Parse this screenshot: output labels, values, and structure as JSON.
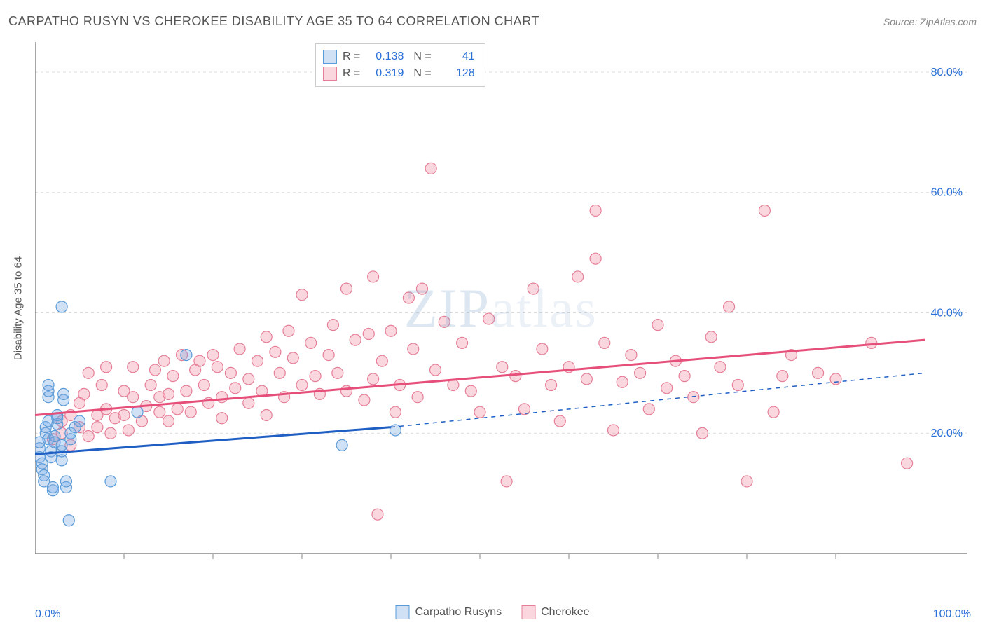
{
  "header": {
    "title": "CARPATHO RUSYN VS CHEROKEE DISABILITY AGE 35 TO 64 CORRELATION CHART",
    "source": "Source: ZipAtlas.com"
  },
  "watermark": {
    "zip": "ZIP",
    "atlas": "atlas"
  },
  "chart": {
    "type": "scatter",
    "y_label": "Disability Age 35 to 64",
    "xlim": [
      0,
      100
    ],
    "ylim": [
      0,
      85
    ],
    "y_ticks": [
      20,
      40,
      60,
      80
    ],
    "y_tick_labels": [
      "20.0%",
      "40.0%",
      "60.0%",
      "80.0%"
    ],
    "x_ticks": [
      10,
      20,
      30,
      40,
      50,
      60,
      70,
      80,
      90
    ],
    "x_label_min": "0.0%",
    "x_label_max": "100.0%",
    "grid_color": "#dcdcdc",
    "axis_color": "#888888",
    "tick_label_color": "#2a6fd6",
    "background_color": "#ffffff",
    "marker_radius": 8,
    "marker_stroke_width": 1.2,
    "series": {
      "carpatho": {
        "label": "Carpatho Rusyns",
        "fill": "rgba(120,170,230,0.35)",
        "stroke": "#5a9bd8",
        "trend_color": "#1f5fc4",
        "trend_solid_x": [
          0,
          40
        ],
        "trend_solid_y": [
          16.5,
          21
        ],
        "trend_dash_x": [
          40,
          100
        ],
        "trend_dash_y": [
          21,
          30
        ],
        "points": [
          [
            0.5,
            17.5
          ],
          [
            0.5,
            18.5
          ],
          [
            0.5,
            16
          ],
          [
            0.8,
            15
          ],
          [
            0.8,
            14
          ],
          [
            1,
            13
          ],
          [
            1,
            12
          ],
          [
            1.2,
            20
          ],
          [
            1.2,
            21
          ],
          [
            1.5,
            22
          ],
          [
            1.5,
            19
          ],
          [
            1.5,
            26
          ],
          [
            1.5,
            27
          ],
          [
            1.5,
            28
          ],
          [
            1.8,
            17
          ],
          [
            1.8,
            16
          ],
          [
            2,
            10.5
          ],
          [
            2,
            11
          ],
          [
            2.2,
            18.5
          ],
          [
            2.2,
            19.5
          ],
          [
            2.5,
            21.5
          ],
          [
            2.5,
            22.5
          ],
          [
            2.5,
            23
          ],
          [
            3,
            15.5
          ],
          [
            3,
            17
          ],
          [
            3,
            18
          ],
          [
            3,
            41
          ],
          [
            3.2,
            25.5
          ],
          [
            3.2,
            26.5
          ],
          [
            3.5,
            11
          ],
          [
            3.5,
            12
          ],
          [
            3.8,
            5.5
          ],
          [
            4,
            19
          ],
          [
            4,
            20
          ],
          [
            4.5,
            21
          ],
          [
            5,
            22
          ],
          [
            8.5,
            12
          ],
          [
            11.5,
            23.5
          ],
          [
            17,
            33
          ],
          [
            34.5,
            18
          ],
          [
            40.5,
            20.5
          ]
        ]
      },
      "cherokee": {
        "label": "Cherokee",
        "fill": "rgba(240,140,160,0.35)",
        "stroke": "#e57f98",
        "trend_color": "#e64f7a",
        "trend_solid_x": [
          0,
          100
        ],
        "trend_solid_y": [
          23,
          35.5
        ],
        "points": [
          [
            2,
            19
          ],
          [
            3,
            20
          ],
          [
            3,
            22
          ],
          [
            4,
            23
          ],
          [
            4,
            18
          ],
          [
            5,
            25
          ],
          [
            5,
            21
          ],
          [
            5.5,
            26.5
          ],
          [
            6,
            30
          ],
          [
            6,
            19.5
          ],
          [
            7,
            21
          ],
          [
            7,
            23
          ],
          [
            7.5,
            28
          ],
          [
            8,
            31
          ],
          [
            8,
            24
          ],
          [
            8.5,
            20
          ],
          [
            9,
            22.5
          ],
          [
            10,
            23
          ],
          [
            10,
            27
          ],
          [
            10.5,
            20.5
          ],
          [
            11,
            31
          ],
          [
            11,
            26
          ],
          [
            12,
            22
          ],
          [
            12.5,
            24.5
          ],
          [
            13,
            28
          ],
          [
            13.5,
            30.5
          ],
          [
            14,
            26
          ],
          [
            14,
            23.5
          ],
          [
            14.5,
            32
          ],
          [
            15,
            26.5
          ],
          [
            15,
            22
          ],
          [
            15.5,
            29.5
          ],
          [
            16,
            24
          ],
          [
            16.5,
            33
          ],
          [
            17,
            27
          ],
          [
            17.5,
            23.5
          ],
          [
            18,
            30.5
          ],
          [
            18.5,
            32
          ],
          [
            19,
            28
          ],
          [
            19.5,
            25
          ],
          [
            20,
            33
          ],
          [
            20.5,
            31
          ],
          [
            21,
            26
          ],
          [
            21,
            22.5
          ],
          [
            22,
            30
          ],
          [
            22.5,
            27.5
          ],
          [
            23,
            34
          ],
          [
            24,
            29
          ],
          [
            24,
            25
          ],
          [
            25,
            32
          ],
          [
            25.5,
            27
          ],
          [
            26,
            36
          ],
          [
            26,
            23
          ],
          [
            27,
            33.5
          ],
          [
            27.5,
            30
          ],
          [
            28,
            26
          ],
          [
            28.5,
            37
          ],
          [
            29,
            32.5
          ],
          [
            30,
            28
          ],
          [
            30,
            43
          ],
          [
            31,
            35
          ],
          [
            31.5,
            29.5
          ],
          [
            32,
            26.5
          ],
          [
            33,
            33
          ],
          [
            33.5,
            38
          ],
          [
            34,
            30
          ],
          [
            35,
            27
          ],
          [
            35,
            44
          ],
          [
            36,
            35.5
          ],
          [
            37,
            25.5
          ],
          [
            37.5,
            36.5
          ],
          [
            38,
            29
          ],
          [
            38,
            46
          ],
          [
            38.5,
            6.5
          ],
          [
            39,
            32
          ],
          [
            40,
            37
          ],
          [
            40.5,
            23.5
          ],
          [
            41,
            28
          ],
          [
            42,
            42.5
          ],
          [
            42.5,
            34
          ],
          [
            43,
            26
          ],
          [
            43.5,
            44
          ],
          [
            44.5,
            64
          ],
          [
            45,
            30.5
          ],
          [
            46,
            38.5
          ],
          [
            47,
            28
          ],
          [
            48,
            35
          ],
          [
            49,
            27
          ],
          [
            50,
            23.5
          ],
          [
            51,
            39
          ],
          [
            52.5,
            31
          ],
          [
            53,
            12
          ],
          [
            54,
            29.5
          ],
          [
            55,
            24
          ],
          [
            56,
            44
          ],
          [
            57,
            34
          ],
          [
            58,
            28
          ],
          [
            59,
            22
          ],
          [
            60,
            31
          ],
          [
            61,
            46
          ],
          [
            62,
            29
          ],
          [
            63,
            57
          ],
          [
            63,
            49
          ],
          [
            64,
            35
          ],
          [
            65,
            20.5
          ],
          [
            66,
            28.5
          ],
          [
            67,
            33
          ],
          [
            68,
            30
          ],
          [
            69,
            24
          ],
          [
            70,
            38
          ],
          [
            71,
            27.5
          ],
          [
            72,
            32
          ],
          [
            73,
            29.5
          ],
          [
            74,
            26
          ],
          [
            75,
            20
          ],
          [
            76,
            36
          ],
          [
            77,
            31
          ],
          [
            78,
            41
          ],
          [
            79,
            28
          ],
          [
            80,
            12
          ],
          [
            82,
            57
          ],
          [
            83,
            23.5
          ],
          [
            84,
            29.5
          ],
          [
            85,
            33
          ],
          [
            88,
            30
          ],
          [
            90,
            29
          ],
          [
            94,
            35
          ],
          [
            98,
            15
          ]
        ]
      }
    }
  },
  "rbox": {
    "rows": [
      {
        "swatch_fill": "rgba(120,170,230,0.35)",
        "swatch_stroke": "#5a9bd8",
        "r_label": "R =",
        "r_val": "0.138",
        "n_label": "N =",
        "n_val": "41"
      },
      {
        "swatch_fill": "rgba(240,140,160,0.35)",
        "swatch_stroke": "#e57f98",
        "r_label": "R =",
        "r_val": "0.319",
        "n_label": "N =",
        "n_val": "128"
      }
    ]
  },
  "legend": {
    "items": [
      {
        "swatch_fill": "rgba(120,170,230,0.35)",
        "swatch_stroke": "#5a9bd8",
        "label": "Carpatho Rusyns"
      },
      {
        "swatch_fill": "rgba(240,140,160,0.35)",
        "swatch_stroke": "#e57f98",
        "label": "Cherokee"
      }
    ]
  }
}
